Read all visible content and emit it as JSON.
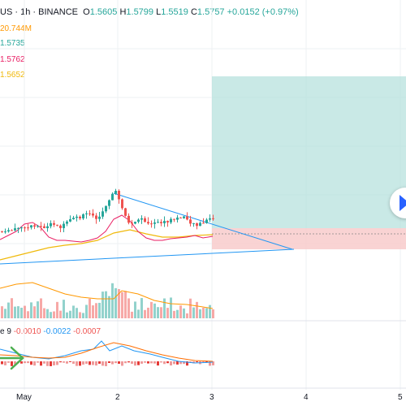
{
  "header": {
    "symbol_fragment": "US",
    "interval": "1h",
    "exchange": "BINANCE",
    "separator": "·",
    "open_label": "O",
    "open": "1.5605",
    "high_label": "H",
    "high": "1.5799",
    "low_label": "L",
    "low": "1.5519",
    "close_label": "C",
    "close": "1.5757",
    "change": "+0.0152 (+0.97%)"
  },
  "indicators": {
    "volume": "20.744M",
    "ma1": "1.5735",
    "ma2": "1.5762",
    "ma3": "1.5652",
    "macd_label": "e 9",
    "macd_values": [
      "-0.0010",
      "-0.0022",
      "-0.0007"
    ]
  },
  "x_axis": {
    "labels": [
      "May",
      "2",
      "3",
      "4",
      "5"
    ]
  },
  "colors": {
    "up": "#26a69a",
    "down": "#ef5350",
    "ma_red": "#e91e63",
    "ma_orange": "#ff9800",
    "ma_yellow": "#f0b90b",
    "trendline": "#2196f3",
    "profit_zone": "#b2dfdb",
    "loss_zone": "#f8c8c8",
    "macd_blue": "#2196f3",
    "macd_orange": "#ff6d00",
    "arrow_green": "#4caf50"
  },
  "chart_data": {
    "type": "candlestick",
    "symbol_fragment": "US",
    "interval": "1h",
    "ohlc_last": {
      "open": 1.5605,
      "high": 1.5799,
      "low": 1.5519,
      "close": 1.5757
    },
    "change": "+0.0152 (+0.97%)",
    "candles_approx_trend": "consolidation forming a symmetrical triangle around 1.55-1.58",
    "position_tool": "long",
    "indicators_shown": [
      "Volume",
      "MA",
      "MA",
      "MA",
      "MACD"
    ],
    "macd_values": [
      -0.001,
      -0.0022,
      -0.0007
    ]
  },
  "icons": {
    "nav": "chevron-right-icon",
    "annotation": "arrow-right-icon"
  }
}
